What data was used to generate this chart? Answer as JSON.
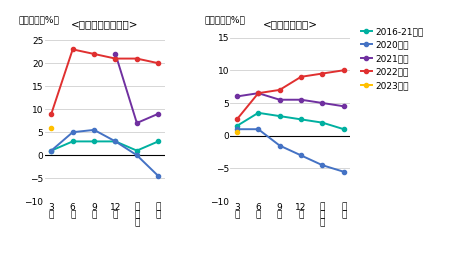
{
  "software": {
    "title": "<ソフトフェア投資>",
    "ylabel": "（前年度比%）",
    "ylim": [
      -10,
      27
    ],
    "yticks": [
      -10,
      -5,
      0,
      5,
      10,
      15,
      20,
      25
    ],
    "series": {
      "2016-21年度": {
        "color": "#00b0a0",
        "data": [
          1,
          3,
          3,
          3,
          1,
          3
        ]
      },
      "2020年度": {
        "color": "#4472c4",
        "data": [
          1,
          5,
          5.5,
          3,
          0,
          -4.5
        ]
      },
      "2021年度": {
        "color": "#7030a0",
        "data": [
          null,
          null,
          null,
          22,
          7,
          9
        ]
      },
      "2022年度": {
        "color": "#e03030",
        "data": [
          9,
          23,
          22,
          21,
          21,
          20
        ]
      },
      "2023年度": {
        "color": "#ffc000",
        "data": [
          6,
          null,
          null,
          null,
          null,
          null
        ]
      }
    }
  },
  "rd": {
    "title": "<研究開発投資>",
    "ylabel": "（前年度比%）",
    "ylim": [
      -10,
      16
    ],
    "yticks": [
      -10,
      -5,
      0,
      5,
      10,
      15
    ],
    "series": {
      "2016-21年度": {
        "color": "#00b0a0",
        "data": [
          1.5,
          3.5,
          3,
          2.5,
          2,
          1
        ]
      },
      "2020年度": {
        "color": "#4472c4",
        "data": [
          1,
          1,
          -1.5,
          -3,
          -4.5,
          -5.5
        ]
      },
      "2021年度": {
        "color": "#7030a0",
        "data": [
          6,
          6.5,
          5.5,
          5.5,
          5,
          4.5
        ]
      },
      "2022年度": {
        "color": "#e03030",
        "data": [
          2.5,
          6.5,
          7,
          9,
          9.5,
          10
        ]
      },
      "2023年度": {
        "color": "#ffc000",
        "data": [
          0.5,
          null,
          null,
          null,
          null,
          null
        ]
      }
    }
  },
  "legend_labels": [
    "2016-21年度",
    "2020年度",
    "2021年度",
    "2022年度",
    "2023年度"
  ],
  "legend_colors": [
    "#00b0a0",
    "#4472c4",
    "#7030a0",
    "#e03030",
    "#ffc000"
  ],
  "xticklabels": [
    "3\n月",
    "6\n月",
    "9\n月",
    "12\n月",
    "見\n込\nみ",
    "実\n績"
  ],
  "background_color": "#ffffff",
  "grid_color": "#d0d0d0"
}
